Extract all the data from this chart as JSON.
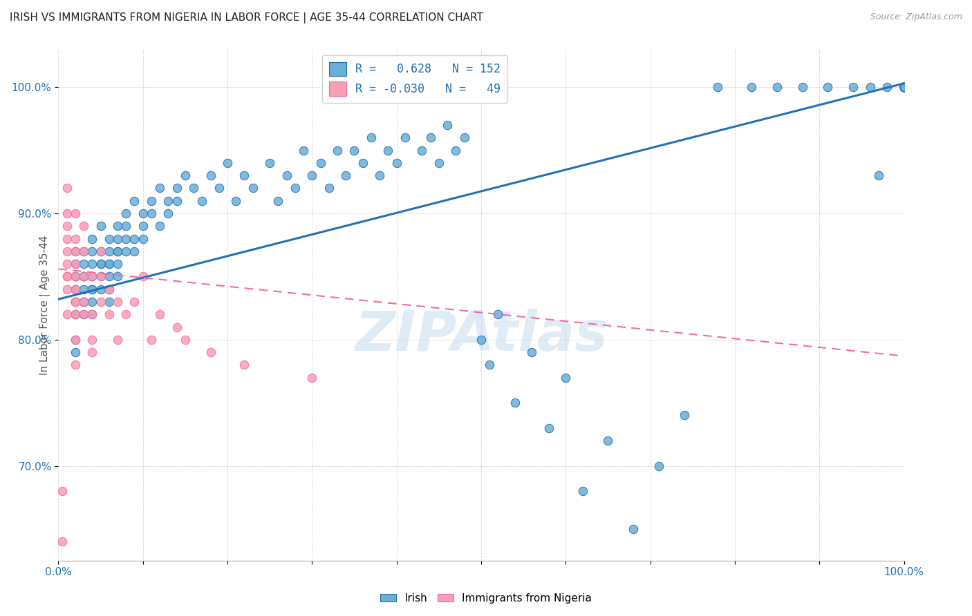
{
  "title": "IRISH VS IMMIGRANTS FROM NIGERIA IN LABOR FORCE | AGE 35-44 CORRELATION CHART",
  "source": "Source: ZipAtlas.com",
  "ylabel": "In Labor Force | Age 35-44",
  "ytick_labels": [
    "70.0%",
    "80.0%",
    "90.0%",
    "100.0%"
  ],
  "ytick_values": [
    0.7,
    0.8,
    0.9,
    1.0
  ],
  "xlim": [
    0.0,
    1.0
  ],
  "ylim": [
    0.625,
    1.03
  ],
  "legend_irish_R": "0.628",
  "legend_irish_N": "152",
  "legend_nigeria_R": "-0.030",
  "legend_nigeria_N": "49",
  "irish_color": "#6baed6",
  "nigeria_color": "#fa9fb5",
  "irish_line_color": "#2171b5",
  "nigeria_line_color": "#f768a1",
  "watermark": "ZIPAtlas",
  "watermark_color": "#b8d4ea",
  "background_color": "#ffffff",
  "irish_scatter_x": [
    0.02,
    0.02,
    0.02,
    0.02,
    0.02,
    0.02,
    0.02,
    0.02,
    0.02,
    0.03,
    0.03,
    0.03,
    0.03,
    0.03,
    0.03,
    0.03,
    0.03,
    0.04,
    0.04,
    0.04,
    0.04,
    0.04,
    0.04,
    0.04,
    0.04,
    0.05,
    0.05,
    0.05,
    0.05,
    0.05,
    0.05,
    0.06,
    0.06,
    0.06,
    0.06,
    0.06,
    0.06,
    0.06,
    0.07,
    0.07,
    0.07,
    0.07,
    0.07,
    0.07,
    0.08,
    0.08,
    0.08,
    0.08,
    0.09,
    0.09,
    0.09,
    0.1,
    0.1,
    0.1,
    0.11,
    0.11,
    0.12,
    0.12,
    0.13,
    0.13,
    0.14,
    0.14,
    0.15,
    0.16,
    0.17,
    0.18,
    0.19,
    0.2,
    0.21,
    0.22,
    0.23,
    0.25,
    0.26,
    0.27,
    0.28,
    0.29,
    0.3,
    0.31,
    0.32,
    0.33,
    0.34,
    0.35,
    0.36,
    0.37,
    0.38,
    0.39,
    0.4,
    0.41,
    0.43,
    0.44,
    0.45,
    0.46,
    0.47,
    0.48,
    0.5,
    0.51,
    0.52,
    0.54,
    0.56,
    0.58,
    0.6,
    0.62,
    0.65,
    0.68,
    0.71,
    0.74,
    0.78,
    0.82,
    0.85,
    0.88,
    0.91,
    0.94,
    0.96,
    0.98,
    1.0,
    1.0,
    1.0,
    1.0,
    1.0,
    1.0,
    1.0,
    1.0,
    1.0,
    1.0,
    1.0,
    1.0,
    1.0,
    1.0,
    1.0,
    1.0,
    1.0,
    1.0,
    1.0,
    1.0,
    1.0,
    1.0,
    1.0,
    1.0,
    1.0,
    1.0,
    1.0,
    1.0,
    1.0,
    1.0,
    1.0,
    1.0,
    0.97
  ],
  "irish_scatter_y": [
    0.82,
    0.84,
    0.86,
    0.85,
    0.87,
    0.83,
    0.85,
    0.8,
    0.79,
    0.83,
    0.85,
    0.84,
    0.86,
    0.85,
    0.82,
    0.83,
    0.87,
    0.84,
    0.85,
    0.83,
    0.87,
    0.86,
    0.88,
    0.82,
    0.84,
    0.86,
    0.85,
    0.84,
    0.87,
    0.86,
    0.89,
    0.85,
    0.86,
    0.87,
    0.84,
    0.88,
    0.86,
    0.83,
    0.87,
    0.88,
    0.86,
    0.85,
    0.89,
    0.87,
    0.88,
    0.87,
    0.89,
    0.9,
    0.88,
    0.87,
    0.91,
    0.89,
    0.9,
    0.88,
    0.9,
    0.91,
    0.89,
    0.92,
    0.9,
    0.91,
    0.92,
    0.91,
    0.93,
    0.92,
    0.91,
    0.93,
    0.92,
    0.94,
    0.91,
    0.93,
    0.92,
    0.94,
    0.91,
    0.93,
    0.92,
    0.95,
    0.93,
    0.94,
    0.92,
    0.95,
    0.93,
    0.95,
    0.94,
    0.96,
    0.93,
    0.95,
    0.94,
    0.96,
    0.95,
    0.96,
    0.94,
    0.97,
    0.95,
    0.96,
    0.8,
    0.78,
    0.82,
    0.75,
    0.79,
    0.73,
    0.77,
    0.68,
    0.72,
    0.65,
    0.7,
    0.74,
    1.0,
    1.0,
    1.0,
    1.0,
    1.0,
    1.0,
    1.0,
    1.0,
    1.0,
    1.0,
    1.0,
    1.0,
    1.0,
    1.0,
    1.0,
    1.0,
    1.0,
    1.0,
    1.0,
    1.0,
    1.0,
    1.0,
    1.0,
    1.0,
    1.0,
    1.0,
    1.0,
    1.0,
    1.0,
    1.0,
    1.0,
    1.0,
    1.0,
    1.0,
    1.0,
    1.0,
    1.0,
    1.0,
    1.0,
    1.0,
    0.93
  ],
  "nigeria_scatter_x": [
    0.005,
    0.005,
    0.01,
    0.01,
    0.01,
    0.01,
    0.01,
    0.01,
    0.01,
    0.01,
    0.01,
    0.01,
    0.02,
    0.02,
    0.02,
    0.02,
    0.02,
    0.02,
    0.02,
    0.02,
    0.02,
    0.02,
    0.02,
    0.03,
    0.03,
    0.03,
    0.03,
    0.03,
    0.04,
    0.04,
    0.04,
    0.04,
    0.05,
    0.05,
    0.05,
    0.06,
    0.06,
    0.07,
    0.07,
    0.08,
    0.09,
    0.1,
    0.11,
    0.12,
    0.14,
    0.15,
    0.18,
    0.22,
    0.3
  ],
  "nigeria_scatter_y": [
    0.64,
    0.68,
    0.85,
    0.86,
    0.88,
    0.9,
    0.92,
    0.87,
    0.85,
    0.84,
    0.82,
    0.89,
    0.83,
    0.85,
    0.87,
    0.82,
    0.8,
    0.83,
    0.86,
    0.84,
    0.88,
    0.9,
    0.78,
    0.85,
    0.82,
    0.87,
    0.89,
    0.83,
    0.79,
    0.82,
    0.85,
    0.8,
    0.83,
    0.85,
    0.87,
    0.84,
    0.82,
    0.83,
    0.8,
    0.82,
    0.83,
    0.85,
    0.8,
    0.82,
    0.81,
    0.8,
    0.79,
    0.78,
    0.77
  ],
  "irish_trendline_x": [
    0.0,
    1.0
  ],
  "irish_trendline_y": [
    0.832,
    1.003
  ],
  "nigeria_trendline_x": [
    0.0,
    1.0
  ],
  "nigeria_trendline_y": [
    0.856,
    0.787
  ]
}
